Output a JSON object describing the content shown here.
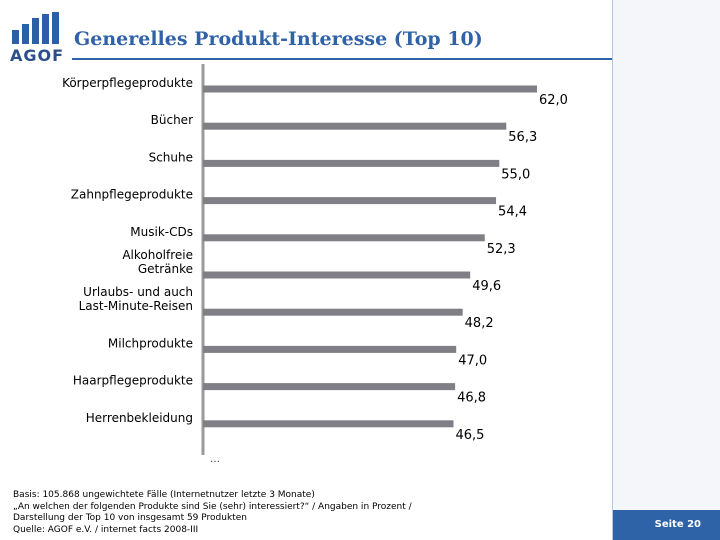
{
  "header": {
    "logo_text": "AGOF",
    "title": "Generelles Produkt-Interesse (Top 10)"
  },
  "chart_data": {
    "type": "bar",
    "orientation": "horizontal",
    "title": "Generelles Produkt-Interesse (Top 10)",
    "categories": [
      [
        "Körperpflegeprodukte"
      ],
      [
        "Bücher"
      ],
      [
        "Schuhe"
      ],
      [
        "Zahnpflegeprodukte"
      ],
      [
        "Musik-CDs"
      ],
      [
        "Alkoholfreie",
        "Getränke"
      ],
      [
        "Urlaubs- und auch",
        "Last-Minute-Reisen"
      ],
      [
        "Milchprodukte"
      ],
      [
        "Haarpflegeprodukte"
      ],
      [
        "Herrenbekleidung"
      ]
    ],
    "values": [
      62.0,
      56.3,
      55.0,
      54.4,
      52.3,
      49.6,
      48.2,
      47.0,
      46.8,
      46.5
    ],
    "value_labels": [
      "62,0",
      "56,3",
      "55,0",
      "54,4",
      "52,3",
      "49,6",
      "48,2",
      "47,0",
      "46,8",
      "46,5"
    ],
    "xlim": [
      0,
      62.0
    ],
    "grid": false,
    "legend": "none",
    "bar_color": "#7f7f85",
    "ellipsis_text": "…"
  },
  "notes": {
    "line1": "Basis: 105.868 ungewichtete Fälle (Internetnutzer letzte 3 Monate)",
    "line2": "„An welchen der folgenden Produkte sind Sie (sehr) interessiert?“ / Angaben in Prozent /",
    "line3": "Darstellung der Top 10 von insgesamt 59 Produkten",
    "line4": "Quelle: AGOF e.V. / internet facts 2008-III"
  },
  "footer": {
    "page_label": "Seite 20"
  },
  "colors": {
    "accent": "#3062a8",
    "footer": "#2f63a8"
  }
}
